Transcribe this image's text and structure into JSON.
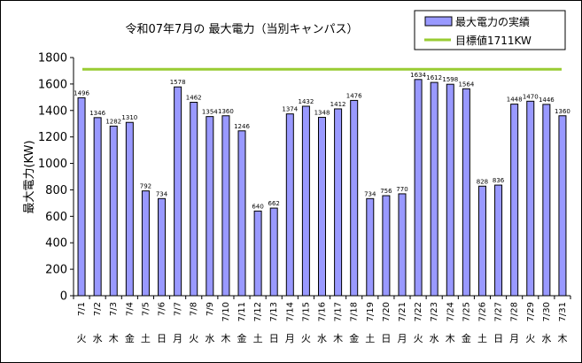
{
  "chart_data": {
    "type": "bar",
    "title": "令和07年7月の 最大電力（当別キャンパス）",
    "ylabel": "最大電力(KW)",
    "xlabel": "",
    "ylim": [
      0,
      1800
    ],
    "yticks": [
      0,
      200,
      400,
      600,
      800,
      1000,
      1200,
      1400,
      1600,
      1800
    ],
    "grid": false,
    "legend_position": "top-right",
    "categories": [
      "7/1",
      "7/2",
      "7/3",
      "7/4",
      "7/5",
      "7/6",
      "7/7",
      "7/8",
      "7/9",
      "7/10",
      "7/11",
      "7/12",
      "7/13",
      "7/14",
      "7/15",
      "7/16",
      "7/17",
      "7/18",
      "7/19",
      "7/20",
      "7/21",
      "7/22",
      "7/23",
      "7/24",
      "7/25",
      "7/26",
      "7/27",
      "7/28",
      "7/29",
      "7/30",
      "7/31"
    ],
    "weekdays": [
      "火",
      "水",
      "木",
      "金",
      "土",
      "日",
      "月",
      "火",
      "水",
      "木",
      "金",
      "土",
      "日",
      "月",
      "火",
      "水",
      "木",
      "金",
      "土",
      "日",
      "月",
      "火",
      "水",
      "木",
      "金",
      "土",
      "日",
      "月",
      "火",
      "水",
      "木"
    ],
    "series": [
      {
        "name": "最大電力の実績",
        "type": "bar",
        "color": "#9999ff",
        "values": [
          1496,
          1346,
          1282,
          1310,
          792,
          734,
          1578,
          1462,
          1354,
          1360,
          1246,
          640,
          662,
          1374,
          1432,
          1348,
          1412,
          1476,
          734,
          756,
          770,
          1634,
          1612,
          1598,
          1564,
          828,
          836,
          1448,
          1470,
          1446,
          1360
        ]
      },
      {
        "name": "目標値1711KW",
        "type": "line",
        "color": "#99cc33",
        "value": 1711
      }
    ]
  }
}
